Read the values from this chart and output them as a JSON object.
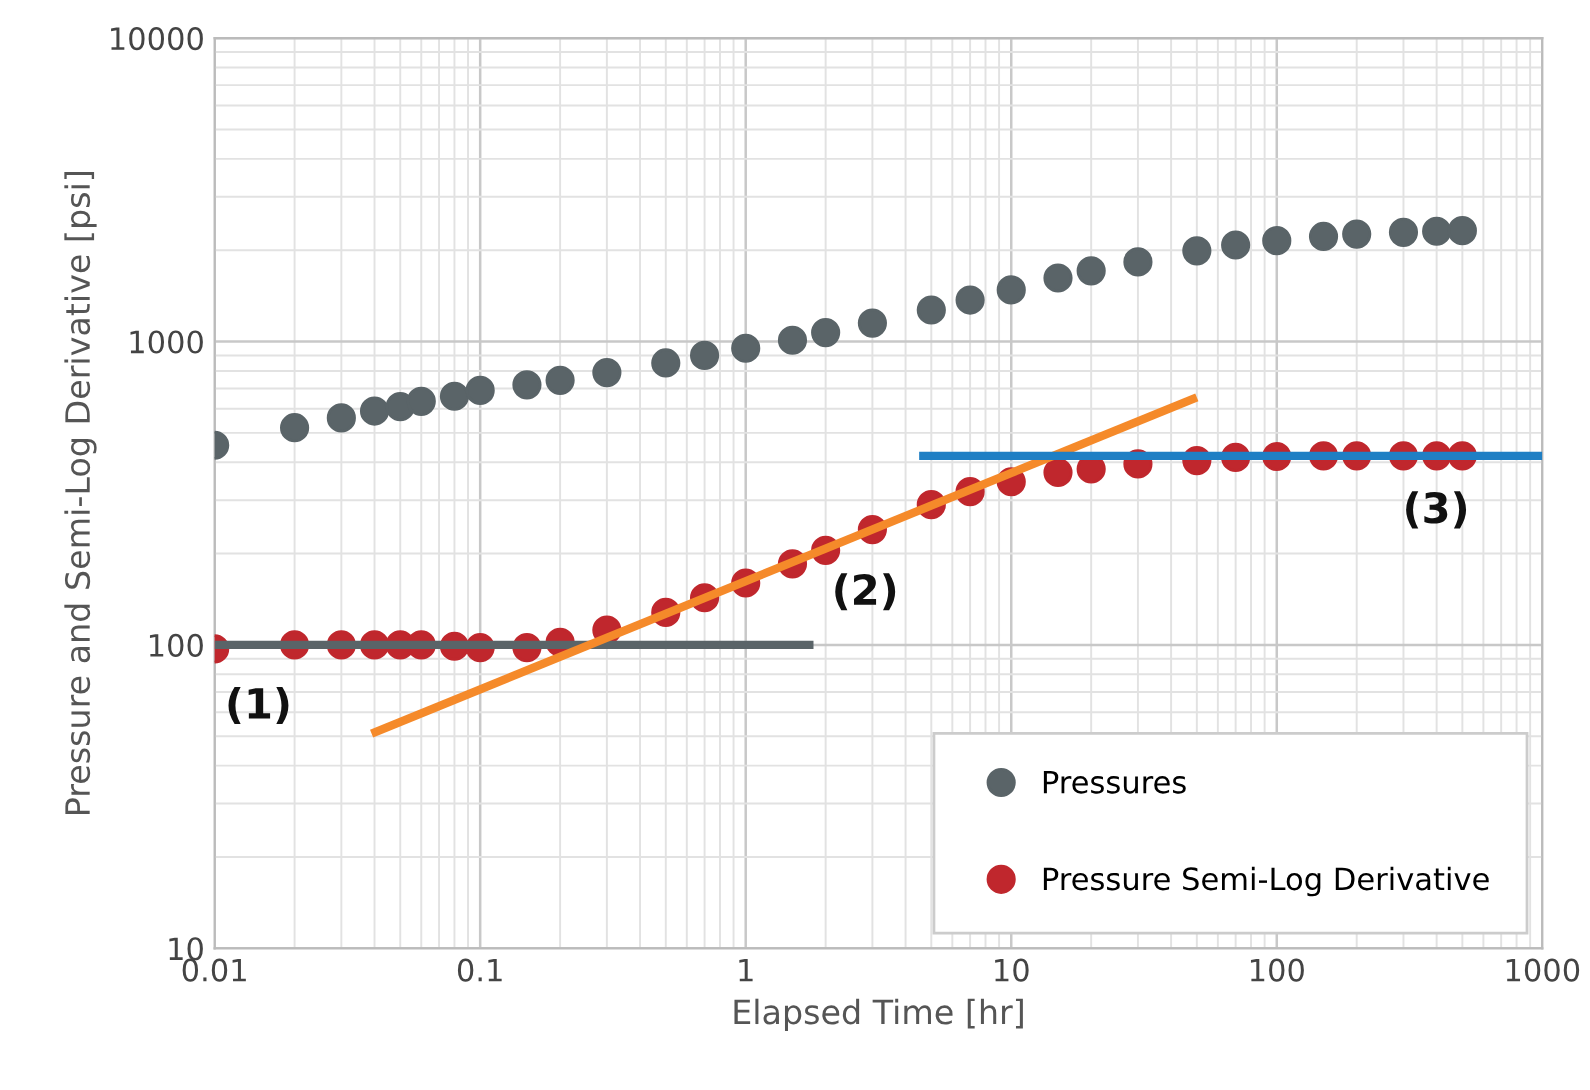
{
  "chart_data": {
    "type": "scatter",
    "xlabel": "Elapsed Time [hr]",
    "ylabel": "Pressure and Semi-Log Derivative [psi]",
    "log": "xy",
    "grid": true,
    "legend": "bottom right",
    "xlim": [
      0.01,
      1000
    ],
    "xticks": [
      0.01,
      0.1,
      1,
      10,
      100,
      1000
    ],
    "ylim": [
      10,
      10000
    ],
    "yticks": [
      10,
      100,
      1000,
      10000
    ],
    "series": [
      {
        "name": "Pressures",
        "color": "#5a6468",
        "marker": "circle",
        "x": [
          0.01,
          0.02,
          0.03,
          0.04,
          0.05,
          0.06,
          0.08,
          0.1,
          0.15,
          0.2,
          0.3,
          0.5,
          0.7,
          1,
          1.5,
          2,
          3,
          5,
          7,
          10,
          15,
          20,
          30,
          50,
          70,
          100,
          150,
          200,
          300,
          400,
          500
        ],
        "values": [
          455,
          520,
          560,
          590,
          610,
          635,
          660,
          690,
          720,
          745,
          790,
          850,
          900,
          950,
          1010,
          1070,
          1150,
          1270,
          1370,
          1480,
          1620,
          1710,
          1830,
          1990,
          2080,
          2150,
          2220,
          2260,
          2290,
          2310,
          2320
        ]
      },
      {
        "name": "Pressure Semi-Log Derivative",
        "color": "#c0272d",
        "marker": "circle",
        "x": [
          0.01,
          0.02,
          0.03,
          0.04,
          0.05,
          0.06,
          0.08,
          0.1,
          0.15,
          0.2,
          0.3,
          0.5,
          0.7,
          1,
          1.5,
          2,
          3,
          5,
          7,
          10,
          15,
          20,
          30,
          50,
          70,
          100,
          150,
          200,
          300,
          400,
          500
        ],
        "values": [
          97,
          100,
          100,
          100,
          100,
          100,
          99,
          98,
          98,
          102,
          112,
          128,
          143,
          160,
          185,
          205,
          240,
          290,
          320,
          345,
          370,
          380,
          395,
          405,
          415,
          418,
          420,
          420,
          420,
          420,
          420
        ]
      },
      {
        "type": "line",
        "color": "#5a6468",
        "x": [
          0.01,
          1.8
        ],
        "values": [
          100,
          100
        ]
      },
      {
        "type": "line",
        "color": "#f58a2a",
        "x": [
          0.039,
          50
        ],
        "values": [
          51,
          655
        ]
      },
      {
        "type": "line",
        "color": "#1f7fc4",
        "x": [
          4.5,
          1000
        ],
        "values": [
          420,
          420
        ]
      }
    ],
    "annotations": [
      "(1)",
      "(2)",
      "(3)"
    ]
  }
}
